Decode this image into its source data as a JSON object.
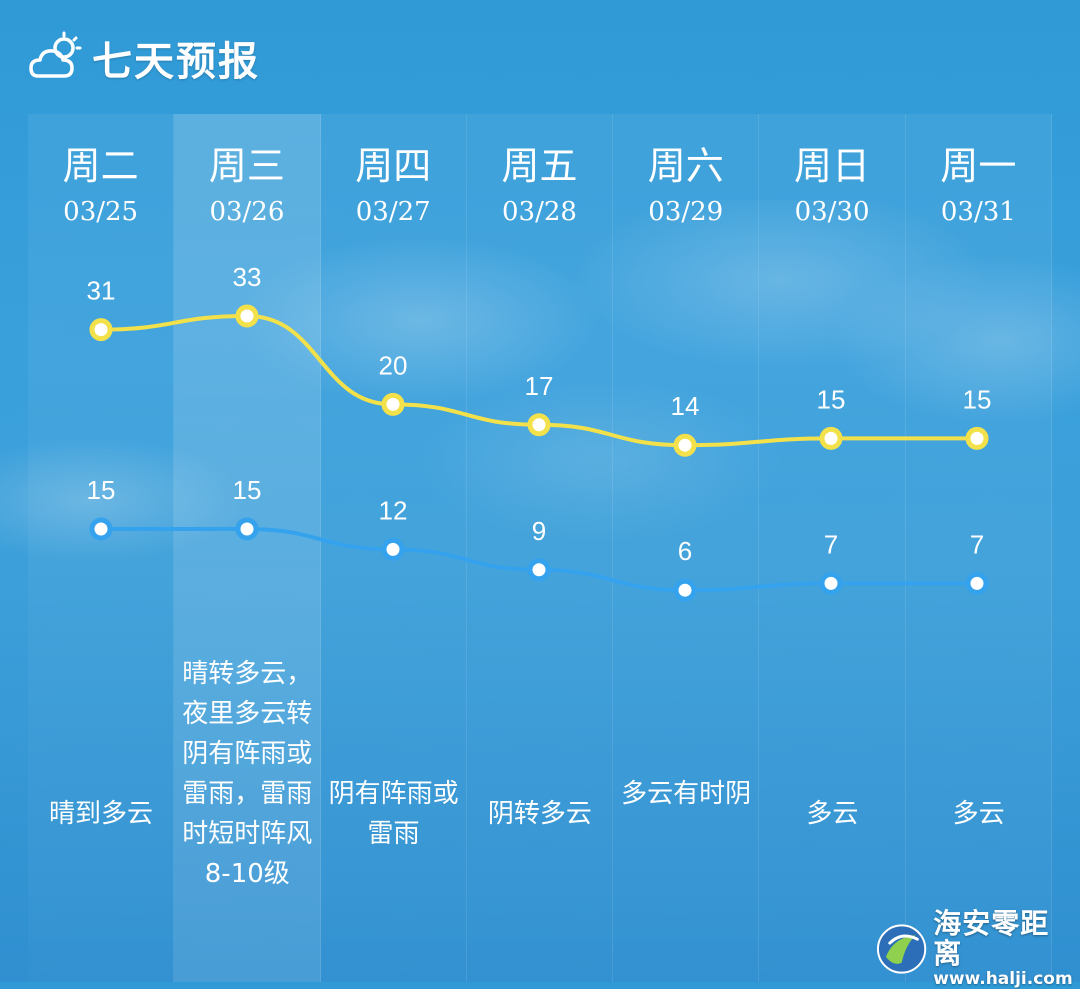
{
  "header": {
    "title": "七天预报",
    "icon": "partly-cloudy-icon"
  },
  "selected_index": 1,
  "days": [
    {
      "weekday": "周二",
      "date": "03/25",
      "high": "31",
      "low": "15",
      "desc": "晴到多云"
    },
    {
      "weekday": "周三",
      "date": "03/26",
      "high": "33",
      "low": "15",
      "desc": "晴转多云，夜里多云转阴有阵雨或雷雨，雷雨时短时阵风8-10级"
    },
    {
      "weekday": "周四",
      "date": "03/27",
      "high": "20",
      "low": "12",
      "desc": "阴有阵雨或雷雨"
    },
    {
      "weekday": "周五",
      "date": "03/28",
      "high": "17",
      "low": "9",
      "desc": "阴转多云"
    },
    {
      "weekday": "周六",
      "date": "03/29",
      "high": "14",
      "low": "6",
      "desc": "多云有时阴"
    },
    {
      "weekday": "周日",
      "date": "03/30",
      "high": "15",
      "low": "7",
      "desc": "多云"
    },
    {
      "weekday": "周一",
      "date": "03/31",
      "high": "15",
      "low": "7",
      "desc": "多云"
    }
  ],
  "chart_data": {
    "type": "line",
    "categories": [
      "周二",
      "周三",
      "周四",
      "周五",
      "周六",
      "周日",
      "周一"
    ],
    "series": [
      {
        "values": [
          31,
          33,
          20,
          17,
          14,
          15,
          15
        ],
        "color": "#f2e14a"
      },
      {
        "values": [
          15,
          15,
          12,
          9,
          6,
          7,
          7
        ],
        "color": "#35a2ee"
      }
    ]
  },
  "watermark": {
    "name": "海安零距离",
    "url": "www.halji.com"
  },
  "colors": {
    "background": "#3a9fdb",
    "high_line": "#f2e14a",
    "low_line": "#35a2ee"
  }
}
